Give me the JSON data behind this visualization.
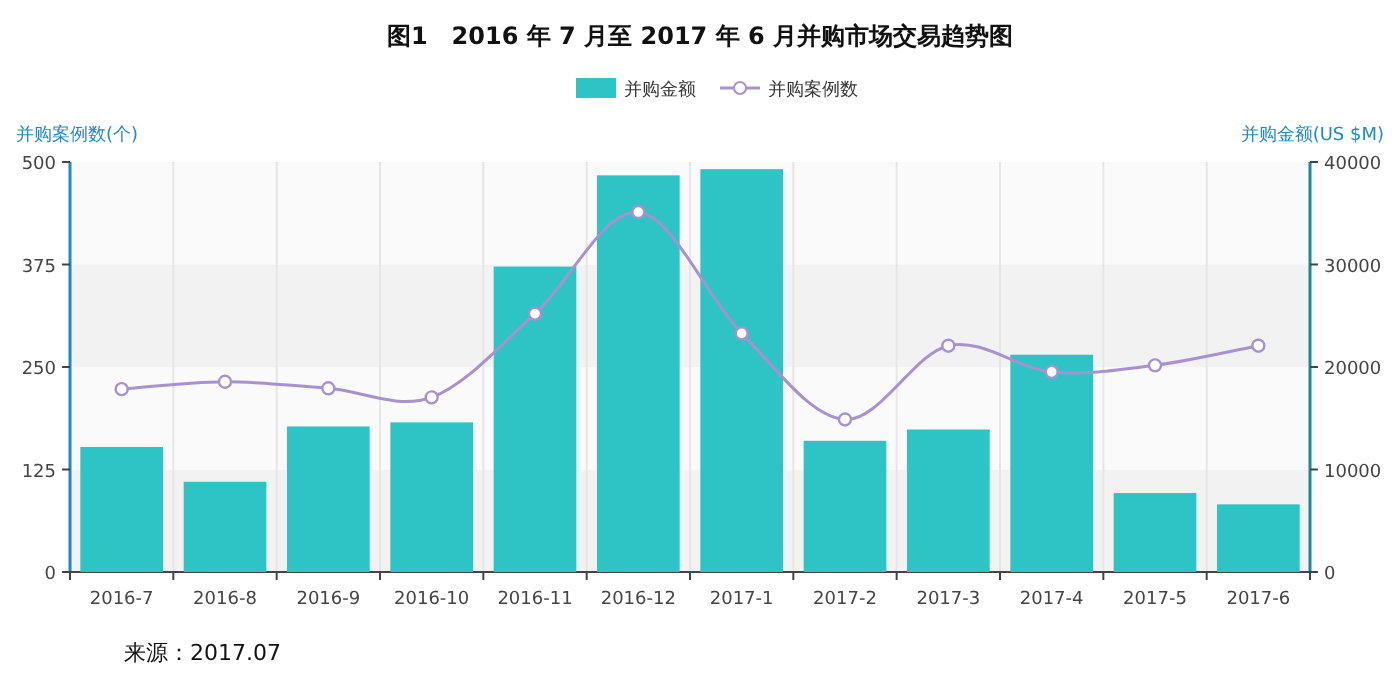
{
  "chart_data": {
    "type": "bar",
    "title": "图1　2016 年 7 月至 2017 年 6 月并购市场交易趋势图",
    "categories": [
      "2016-7",
      "2016-8",
      "2016-9",
      "2016-10",
      "2016-11",
      "2016-12",
      "2017-1",
      "2017-2",
      "2017-3",
      "2017-4",
      "2017-5",
      "2017-6"
    ],
    "series": [
      {
        "name": "并购金额",
        "axis": "y2",
        "color": "#2ec4c6",
        "values": [
          12200,
          8800,
          14200,
          14600,
          29800,
          38700,
          39300,
          12800,
          13900,
          21200,
          7700,
          6600
        ]
      },
      {
        "name": "并购案例数",
        "type": "line",
        "color": "#a792cf",
        "marker": "circle",
        "values": [
          223,
          232,
          224,
          213,
          315,
          439,
          291,
          186,
          276,
          244,
          252,
          276
        ]
      }
    ],
    "ylabel": "并购案例数(个)",
    "y2label": "并购金额(US $M)",
    "ylim": [
      0,
      500
    ],
    "yticks": [
      0,
      125,
      250,
      375,
      500
    ],
    "y2lim": [
      0,
      40000
    ],
    "y2ticks": [
      0,
      10000,
      20000,
      30000,
      40000
    ],
    "grid": true,
    "legend": "top",
    "annotations": [
      "来源：2017.07"
    ]
  }
}
